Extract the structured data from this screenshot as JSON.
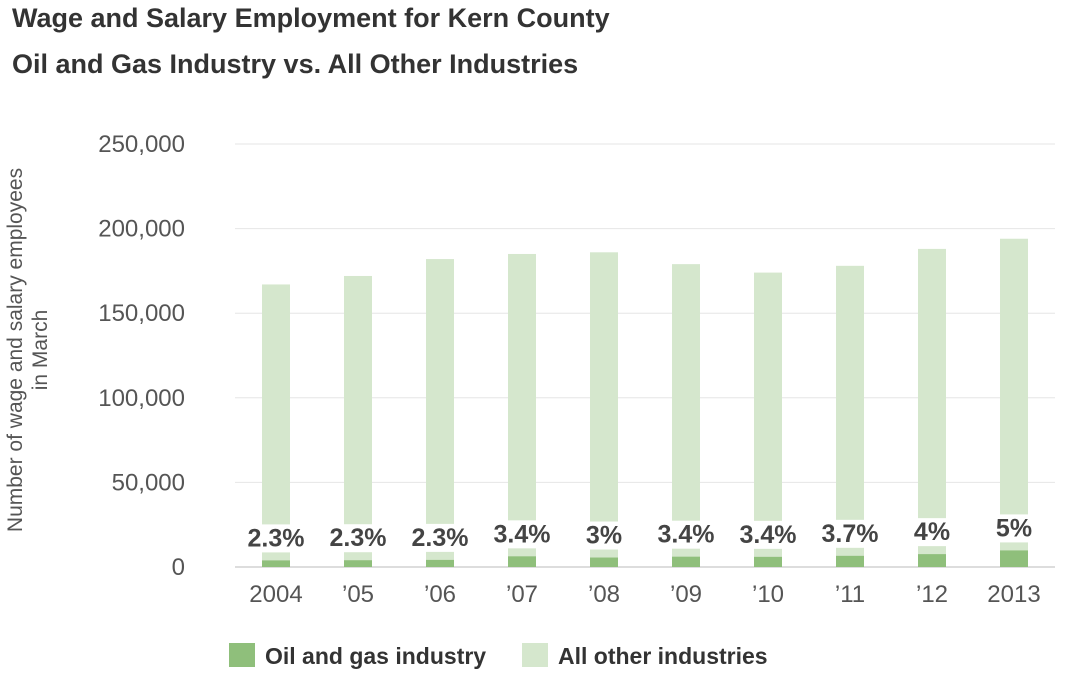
{
  "chart_data": {
    "type": "bar",
    "title": "Wage and Salary Employment for Kern County",
    "subtitle": "Oil and Gas Industry vs. All Other Industries",
    "ylabel_line1": "Number of wage and salary employees",
    "ylabel_line2": "in March",
    "ylim": [
      0,
      250000
    ],
    "yticks": [
      0,
      50000,
      100000,
      150000,
      200000,
      250000
    ],
    "ytick_labels": [
      "0",
      "50,000",
      "100,000",
      "150,000",
      "200,000",
      "250,000"
    ],
    "grid": true,
    "legend_position": "bottom",
    "categories": [
      "2004",
      "’05",
      "’06",
      "’07",
      "’08",
      "’09",
      "’10",
      "’11",
      "’12",
      "2013"
    ],
    "series": [
      {
        "name": "Oil and gas industry",
        "color": "#8fbf7b",
        "values": [
          3900,
          4000,
          4200,
          6300,
          5600,
          6100,
          6000,
          6600,
          7600,
          9800
        ]
      },
      {
        "name": "All other industries",
        "color": "#d5e7cd",
        "values": [
          167000,
          172000,
          182000,
          185000,
          186000,
          179000,
          174000,
          178000,
          188000,
          194000
        ]
      }
    ],
    "data_labels": [
      "2.3%",
      "2.3%",
      "2.3%",
      "3.4%",
      "3%",
      "3.4%",
      "3.4%",
      "3.7%",
      "4%",
      "5%"
    ]
  }
}
